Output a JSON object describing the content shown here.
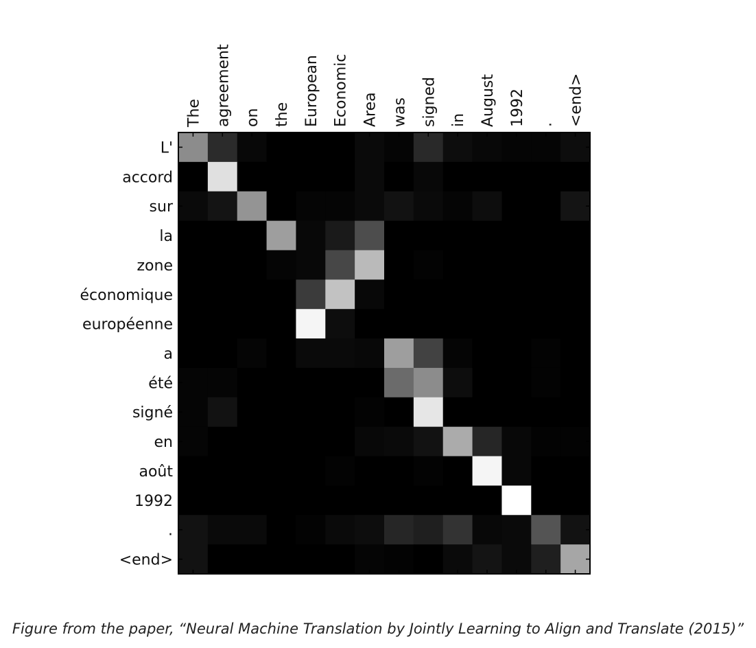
{
  "chart_data": {
    "type": "heatmap",
    "colormap": "gray",
    "x_categories": [
      "The",
      "agreement",
      "on",
      "the",
      "European",
      "Economic",
      "Area",
      "was",
      "signed",
      "in",
      "August",
      "1992",
      ".",
      "<end>"
    ],
    "y_categories": [
      "L'",
      "accord",
      "sur",
      "la",
      "zone",
      "économique",
      "européenne",
      "a",
      "été",
      "signé",
      "en",
      "août",
      "1992",
      ".",
      "<end>"
    ],
    "values": [
      [
        0.55,
        0.17,
        0.03,
        0.0,
        0.0,
        0.0,
        0.04,
        0.02,
        0.16,
        0.05,
        0.03,
        0.02,
        0.02,
        0.05
      ],
      [
        0.0,
        0.88,
        0.0,
        0.0,
        0.0,
        0.0,
        0.04,
        0.0,
        0.03,
        0.0,
        0.0,
        0.0,
        0.0,
        0.0
      ],
      [
        0.04,
        0.08,
        0.58,
        0.0,
        0.02,
        0.02,
        0.04,
        0.07,
        0.04,
        0.02,
        0.05,
        0.0,
        0.0,
        0.08
      ],
      [
        0.0,
        0.0,
        0.0,
        0.62,
        0.03,
        0.1,
        0.3,
        0.0,
        0.0,
        0.0,
        0.0,
        0.0,
        0.0,
        0.0
      ],
      [
        0.0,
        0.0,
        0.0,
        0.02,
        0.03,
        0.28,
        0.73,
        0.0,
        0.01,
        0.0,
        0.0,
        0.0,
        0.0,
        0.0
      ],
      [
        0.0,
        0.0,
        0.0,
        0.0,
        0.23,
        0.76,
        0.03,
        0.0,
        0.0,
        0.0,
        0.0,
        0.0,
        0.0,
        0.0
      ],
      [
        0.0,
        0.0,
        0.0,
        0.0,
        0.96,
        0.05,
        0.0,
        0.0,
        0.0,
        0.0,
        0.0,
        0.0,
        0.0,
        0.0
      ],
      [
        0.0,
        0.0,
        0.02,
        0.0,
        0.04,
        0.04,
        0.03,
        0.62,
        0.26,
        0.02,
        0.0,
        0.0,
        0.01,
        0.0
      ],
      [
        0.02,
        0.02,
        0.0,
        0.0,
        0.0,
        0.0,
        0.0,
        0.42,
        0.55,
        0.05,
        0.0,
        0.0,
        0.01,
        0.0
      ],
      [
        0.02,
        0.07,
        0.0,
        0.0,
        0.0,
        0.0,
        0.01,
        0.0,
        0.9,
        0.0,
        0.0,
        0.0,
        0.0,
        0.0
      ],
      [
        0.02,
        0.0,
        0.0,
        0.0,
        0.0,
        0.0,
        0.03,
        0.04,
        0.07,
        0.67,
        0.15,
        0.03,
        0.01,
        0.01
      ],
      [
        0.0,
        0.0,
        0.0,
        0.0,
        0.0,
        0.01,
        0.0,
        0.0,
        0.01,
        0.0,
        0.96,
        0.03,
        0.0,
        0.0
      ],
      [
        0.0,
        0.0,
        0.0,
        0.0,
        0.0,
        0.0,
        0.0,
        0.0,
        0.0,
        0.0,
        0.0,
        1.0,
        0.0,
        0.0
      ],
      [
        0.07,
        0.04,
        0.04,
        0.0,
        0.01,
        0.04,
        0.05,
        0.15,
        0.12,
        0.2,
        0.03,
        0.04,
        0.33,
        0.07
      ],
      [
        0.07,
        0.0,
        0.0,
        0.0,
        0.0,
        0.0,
        0.02,
        0.01,
        0.0,
        0.04,
        0.08,
        0.04,
        0.12,
        0.65
      ]
    ],
    "xlabel": "",
    "ylabel": "",
    "title": ""
  },
  "caption": "Figure from the paper, “Neural Machine Translation by Jointly Learning to Align and Translate (2015)”"
}
